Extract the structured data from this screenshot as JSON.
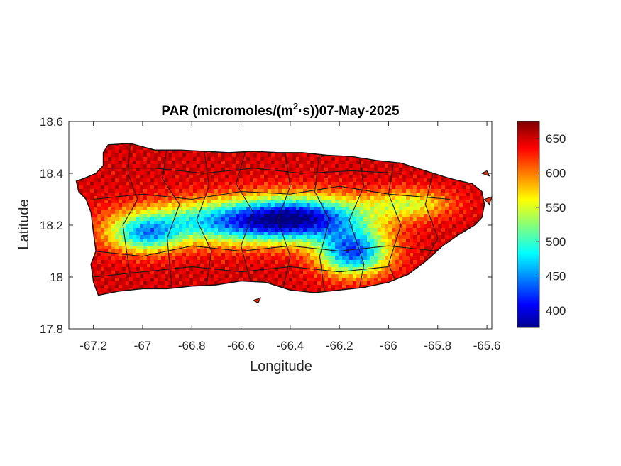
{
  "figure": {
    "title_main": "PAR (micromoles/(m",
    "title_sup": "2",
    "title_rest": "·s))07-May-2025",
    "xlabel": "Longitude",
    "ylabel": "Latitude"
  },
  "map": {
    "xlim": [
      -67.3,
      -65.58
    ],
    "ylim": [
      17.8,
      18.6
    ],
    "xticks": [
      -67.2,
      -67,
      -66.8,
      -66.6,
      -66.4,
      -66.2,
      -66,
      -65.8,
      -65.6
    ],
    "xtick_labels": [
      "-67.2",
      "-67",
      "-66.8",
      "-66.6",
      "-66.4",
      "-66.2",
      "-66",
      "-65.8",
      "-65.6"
    ],
    "yticks": [
      17.8,
      18,
      18.2,
      18.4,
      18.6
    ],
    "ytick_labels": [
      "17.8",
      "18",
      "18.2",
      "18.4",
      "18.6"
    ],
    "grid": false,
    "colormap": "jet",
    "boundary_color": "#000000"
  },
  "colorbar": {
    "range": [
      375,
      675
    ],
    "ticks": [
      400,
      450,
      500,
      550,
      600,
      650
    ],
    "tick_labels": [
      "400",
      "450",
      "500",
      "550",
      "600",
      "650"
    ],
    "placement": "right"
  },
  "chart_data": {
    "type": "heatmap",
    "title": "PAR (micromoles/(m2·s))07-May-2025",
    "xlabel": "Longitude",
    "ylabel": "Latitude",
    "xlim": [
      -67.3,
      -65.58
    ],
    "ylim": [
      17.8,
      18.6
    ],
    "value_range": [
      375,
      675
    ],
    "region": "Puerto Rico",
    "date": "07-May-2025",
    "pattern": [
      {
        "zone": "north coast",
        "approx_value": 640
      },
      {
        "zone": "south coast",
        "approx_value": 650
      },
      {
        "zone": "west coast",
        "approx_value": 620
      },
      {
        "zone": "east coast",
        "approx_value": 620
      },
      {
        "zone": "central mountains (-66.9 to -66.3, 18.2)",
        "approx_value": 430
      },
      {
        "zone": "southeast interior (-66.15, 18.1)",
        "approx_value": 400
      },
      {
        "zone": "west interior (-67.0, 18.17)",
        "approx_value": 440
      }
    ]
  }
}
